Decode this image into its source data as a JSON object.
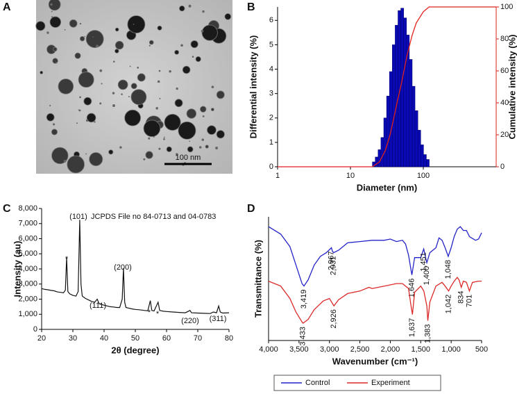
{
  "figure": {
    "panel_labels": [
      "A",
      "B",
      "C",
      "D"
    ],
    "scale_bar": "100 nm"
  },
  "chart_data": [
    {
      "type": "histogram",
      "xlabel": "Diameter (nm)",
      "ylabel": "Differential intensity (%)",
      "y2label": "Cumulative intensity (%)",
      "log_x": true,
      "xlim": [
        1,
        1000
      ],
      "xticks": [
        1,
        10,
        100
      ],
      "ylim": [
        0,
        6.55
      ],
      "yticks": [
        0,
        1,
        2,
        3,
        4,
        5,
        6
      ],
      "y2lim": [
        0,
        100
      ],
      "y2ticks": [
        0,
        20,
        40,
        60,
        80,
        100
      ],
      "bins": [
        20.0,
        21.88,
        23.94,
        26.19,
        28.65,
        31.34,
        34.29,
        37.51,
        41.04,
        44.9,
        49.12,
        53.74,
        58.79,
        64.31,
        70.36,
        76.97,
        84.21,
        92.12,
        100.8,
        110.2,
        120.6
      ],
      "values": [
        0.2,
        0.4,
        0.7,
        1.2,
        2.0,
        2.9,
        3.9,
        5.0,
        5.8,
        6.4,
        6.5,
        6.1,
        5.4,
        4.4,
        3.3,
        2.3,
        1.5,
        0.9,
        0.5,
        0.3
      ],
      "color": "#0a0ab4",
      "axis2_color": "#e0201b",
      "cumulative": {
        "x": [
          1,
          20,
          25,
          30,
          35,
          40,
          45,
          50,
          60,
          70,
          80,
          100,
          120,
          1000
        ],
        "values": [
          0,
          0,
          3,
          10,
          20,
          32,
          43,
          52,
          70,
          82,
          90,
          97,
          100,
          100
        ],
        "color": "#e0201b",
        "axis": "y2"
      }
    },
    {
      "type": "line",
      "xlabel": "2θ (degree)",
      "ylabel": "Intensity (au)",
      "xlim": [
        20,
        80
      ],
      "xticks": [
        20,
        30,
        40,
        50,
        60,
        70,
        80
      ],
      "ylim": [
        0,
        8000
      ],
      "yticks": [
        0,
        {
          "value": 1000,
          "label": "1,000"
        },
        {
          "value": 2000,
          "label": "2,000"
        },
        {
          "value": 3000,
          "label": "3,000"
        },
        {
          "value": 4000,
          "label": "4,000"
        },
        {
          "value": 5000,
          "label": "5,000"
        },
        {
          "value": 6000,
          "label": "6,000"
        },
        {
          "value": 7000,
          "label": "7,000"
        },
        {
          "value": 8000,
          "label": "8,000"
        }
      ],
      "x": [
        20,
        21,
        22,
        23,
        24,
        25,
        26,
        27,
        27.6,
        28,
        28.4,
        29,
        30,
        31,
        31.7,
        32.2,
        32.6,
        33,
        34,
        35,
        36,
        37,
        37.8,
        38.4,
        39,
        40,
        41,
        42,
        43,
        44,
        45,
        45.8,
        46.2,
        46.6,
        47,
        48,
        49,
        50,
        51,
        52,
        53,
        54,
        54.8,
        55.3,
        56,
        57.3,
        57.8,
        59,
        60,
        62,
        64,
        66,
        67.5,
        68,
        70,
        72,
        74,
        75,
        76,
        76.7,
        77.2,
        78,
        80
      ],
      "values": [
        2700,
        2650,
        2620,
        2580,
        2550,
        2480,
        2450,
        2420,
        2600,
        4750,
        2500,
        2350,
        2250,
        2200,
        2500,
        7250,
        3000,
        2200,
        2050,
        1950,
        1850,
        1800,
        2000,
        1700,
        1650,
        1600,
        1550,
        1500,
        1480,
        1450,
        1450,
        2000,
        4050,
        1800,
        1450,
        1400,
        1350,
        1320,
        1300,
        1280,
        1250,
        1230,
        1900,
        1250,
        1220,
        1800,
        1250,
        1200,
        1180,
        1150,
        1120,
        1100,
        1250,
        1100,
        1080,
        1060,
        1050,
        1150,
        1100,
        1550,
        1150,
        1080,
        1100
      ],
      "color": "#111111",
      "annotations": [
        "(101)",
        "JCPDS File no 84-0713 and 04-0783",
        "*",
        "(200)",
        "(111)",
        "*",
        "*",
        "(220)",
        "(311)"
      ]
    },
    {
      "type": "line",
      "xlabel": "Wavenumber (cm⁻¹)",
      "ylabel": "Transmittance (%)",
      "xlim": [
        4000,
        500
      ],
      "xticks": [
        {
          "value": 4000,
          "label": "4,000"
        },
        {
          "value": 3500,
          "label": "3,500"
        },
        {
          "value": 3000,
          "label": "3,000"
        },
        {
          "value": 2500,
          "label": "2,500"
        },
        {
          "value": 2000,
          "label": "2,000"
        },
        {
          "value": 1500,
          "label": "1,500"
        },
        {
          "value": 1000,
          "label": "1,000"
        },
        500
      ],
      "ylim": [
        0,
        100
      ],
      "legend": "bottom",
      "series": [
        {
          "name": "Control",
          "color": "#2323c8",
          "x": [
            4000,
            3800,
            3650,
            3550,
            3450,
            3419,
            3350,
            3250,
            3150,
            3050,
            2967,
            2950,
            2931,
            2850,
            2700,
            2500,
            2300,
            2100,
            2000,
            1900,
            1800,
            1750,
            1700,
            1646,
            1600,
            1550,
            1500,
            1451,
            1420,
            1400,
            1350,
            1250,
            1200,
            1150,
            1100,
            1048,
            1000,
            950,
            900,
            850,
            800,
            750,
            700,
            600,
            550,
            500
          ],
          "values": [
            92,
            86,
            76,
            61,
            46,
            44,
            49,
            61,
            68,
            71,
            75,
            72,
            71,
            73,
            79,
            80,
            81,
            81,
            82,
            80,
            81,
            78,
            69,
            53,
            67,
            67,
            67,
            74,
            67,
            63,
            71,
            75,
            83,
            81,
            75,
            68,
            75,
            84,
            90,
            92,
            89,
            89,
            84,
            81,
            82,
            87
          ],
          "peak_labels": [
            {
              "value": 3419,
              "label": "3,419"
            },
            {
              "value": 2967,
              "label": "2,967"
            },
            {
              "value": 2931,
              "label": "2,931"
            },
            {
              "value": 1646,
              "label": "1,646"
            },
            {
              "value": 1451,
              "label": "1,451"
            },
            {
              "value": 1400,
              "label": "1,400"
            },
            {
              "value": 1048,
              "label": "1,048"
            }
          ]
        },
        {
          "name": "Experiment",
          "color": "#dc2828",
          "x": [
            4000,
            3800,
            3650,
            3550,
            3450,
            3433,
            3350,
            3250,
            3100,
            3000,
            2926,
            2850,
            2700,
            2500,
            2350,
            2300,
            2100,
            1900,
            1800,
            1700,
            1660,
            1637,
            1600,
            1500,
            1450,
            1400,
            1383,
            1350,
            1250,
            1150,
            1100,
            1042,
            1000,
            950,
            900,
            870,
            834,
            800,
            750,
            701,
            650,
            550,
            500
          ],
          "values": [
            48,
            44,
            34,
            23,
            15,
            14,
            17,
            25,
            32,
            34,
            28,
            33,
            38,
            40,
            43,
            42,
            44,
            46,
            46,
            42,
            28,
            21,
            39,
            44,
            40,
            28,
            16,
            31,
            44,
            47,
            44,
            40,
            44,
            48,
            51,
            49,
            43,
            48,
            47,
            40,
            47,
            48,
            48
          ],
          "peak_labels": [
            {
              "value": 3433,
              "label": "3,433"
            },
            {
              "value": 2926,
              "label": "2,926"
            },
            {
              "value": 1637,
              "label": "1,637"
            },
            {
              "value": 1383,
              "label": "1,383"
            },
            {
              "value": 1042,
              "label": "1,042"
            },
            834,
            701
          ]
        }
      ]
    }
  ]
}
